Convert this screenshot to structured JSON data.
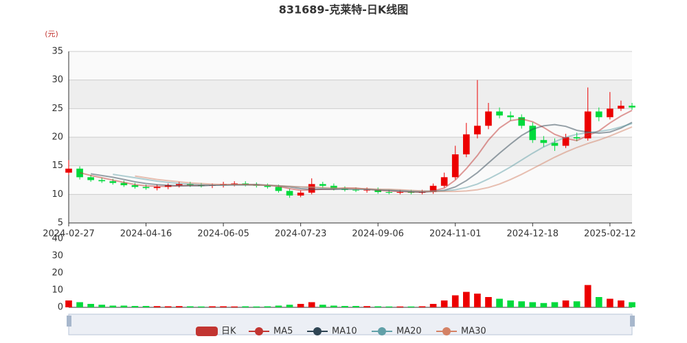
{
  "chart_data": [
    {
      "type": "candlestick",
      "title": "831689-克莱特-日K线图",
      "y_unit": "(元)",
      "name": "日K",
      "up_color": "#ec0000",
      "down_color": "#00da3c",
      "categories": [
        "2024-02-27",
        null,
        null,
        null,
        null,
        null,
        null,
        "2024-04-16",
        null,
        null,
        null,
        null,
        null,
        null,
        "2024-06-05",
        null,
        null,
        null,
        null,
        null,
        null,
        "2024-07-23",
        null,
        null,
        null,
        null,
        null,
        null,
        "2024-09-06",
        null,
        null,
        null,
        null,
        null,
        null,
        "2024-11-01",
        null,
        null,
        null,
        null,
        null,
        null,
        "2024-12-18",
        null,
        null,
        null,
        null,
        null,
        null,
        "2025-02-12",
        null,
        null
      ],
      "open": [
        13.8,
        14.5,
        13.0,
        12.5,
        12.3,
        12.0,
        11.6,
        11.3,
        11.1,
        11.3,
        11.6,
        11.8,
        11.6,
        11.5,
        11.6,
        11.8,
        11.9,
        11.7,
        11.5,
        11.3,
        10.6,
        9.8,
        10.3,
        11.8,
        11.5,
        11.0,
        10.8,
        10.7,
        10.8,
        10.4,
        10.3,
        10.4,
        10.3,
        10.4,
        11.5,
        13.0,
        17.0,
        20.5,
        22.0,
        24.5,
        23.8,
        23.5,
        22.0,
        19.5,
        19.0,
        18.5,
        20.0,
        19.8,
        24.5,
        23.5,
        25.0,
        25.5
      ],
      "close": [
        14.5,
        13.0,
        12.5,
        12.3,
        12.0,
        11.6,
        11.3,
        11.1,
        11.3,
        11.6,
        11.8,
        11.6,
        11.5,
        11.6,
        11.8,
        11.9,
        11.7,
        11.5,
        11.3,
        10.6,
        9.8,
        10.3,
        11.8,
        11.5,
        11.0,
        10.8,
        10.7,
        10.8,
        10.4,
        10.3,
        10.4,
        10.3,
        10.4,
        11.5,
        13.0,
        17.0,
        20.5,
        22.0,
        24.5,
        23.8,
        23.5,
        22.0,
        19.5,
        19.0,
        18.5,
        20.0,
        19.8,
        24.5,
        23.5,
        25.0,
        25.5,
        25.2
      ],
      "low": [
        13.4,
        12.6,
        12.2,
        12.0,
        11.7,
        11.3,
        11.0,
        10.8,
        10.7,
        10.9,
        11.2,
        11.3,
        11.2,
        11.1,
        11.2,
        11.4,
        11.4,
        11.2,
        11.0,
        10.3,
        9.4,
        9.5,
        10.0,
        11.1,
        10.7,
        10.5,
        10.4,
        10.3,
        10.1,
        10.0,
        10.0,
        10.0,
        10.0,
        10.1,
        11.2,
        12.6,
        16.5,
        19.8,
        21.4,
        23.3,
        22.9,
        21.5,
        19.0,
        18.3,
        17.6,
        18.1,
        19.3,
        19.4,
        22.8,
        23.1,
        24.6,
        24.8
      ],
      "high": [
        16.0,
        14.9,
        13.4,
        12.9,
        12.7,
        12.4,
        12.0,
        11.7,
        11.7,
        11.9,
        12.2,
        12.2,
        12.0,
        11.9,
        12.2,
        12.3,
        12.3,
        12.1,
        11.9,
        11.7,
        11.0,
        10.7,
        12.8,
        12.2,
        11.9,
        11.4,
        11.2,
        11.2,
        11.2,
        10.8,
        10.8,
        10.8,
        10.8,
        11.9,
        13.8,
        18.5,
        22.5,
        30.0,
        26.0,
        25.2,
        24.5,
        24.0,
        22.6,
        20.2,
        19.8,
        20.6,
        20.8,
        28.7,
        25.2,
        27.9,
        26.4,
        26.0
      ],
      "series": [
        {
          "name": "MA5",
          "color": "#c23531",
          "values": [
            null,
            13.8,
            13.3,
            12.9,
            12.5,
            12.1,
            11.7,
            11.5,
            11.4,
            11.4,
            11.5,
            11.6,
            11.6,
            11.6,
            11.7,
            11.7,
            11.7,
            11.7,
            11.6,
            11.4,
            11.0,
            10.7,
            10.8,
            10.9,
            10.9,
            11.1,
            11.1,
            10.9,
            10.7,
            10.6,
            10.5,
            10.4,
            10.4,
            10.6,
            11.1,
            12.5,
            14.5,
            16.8,
            19.5,
            21.6,
            22.9,
            23.2,
            22.7,
            21.7,
            20.5,
            19.8,
            19.4,
            20.3,
            21.1,
            22.5,
            23.7,
            24.7
          ]
        },
        {
          "name": "MA10",
          "color": "#2f4554",
          "values": [
            null,
            null,
            13.6,
            13.3,
            13.0,
            12.6,
            12.2,
            11.9,
            11.7,
            11.6,
            11.5,
            11.5,
            11.5,
            11.6,
            11.6,
            11.7,
            11.7,
            11.7,
            11.6,
            11.5,
            11.3,
            11.0,
            10.9,
            10.9,
            10.9,
            10.9,
            10.9,
            10.9,
            10.8,
            10.7,
            10.6,
            10.5,
            10.4,
            10.5,
            10.7,
            11.3,
            12.4,
            13.8,
            15.5,
            17.2,
            18.8,
            20.3,
            21.4,
            22.0,
            22.2,
            21.9,
            21.2,
            20.9,
            20.7,
            20.9,
            21.6,
            22.6
          ]
        },
        {
          "name": "MA20",
          "color": "#61a0a8",
          "values": [
            null,
            null,
            null,
            null,
            13.5,
            13.2,
            12.9,
            12.6,
            12.3,
            12.1,
            11.9,
            11.8,
            11.7,
            11.6,
            11.6,
            11.6,
            11.6,
            11.6,
            11.6,
            11.5,
            11.4,
            11.3,
            11.2,
            11.1,
            11.0,
            11.0,
            10.9,
            10.9,
            10.8,
            10.8,
            10.7,
            10.6,
            10.6,
            10.6,
            10.6,
            10.8,
            11.2,
            11.8,
            12.7,
            13.7,
            14.8,
            16.0,
            17.2,
            18.3,
            19.2,
            20.0,
            20.5,
            20.8,
            21.0,
            21.3,
            21.8,
            22.4
          ]
        },
        {
          "name": "MA30",
          "color": "#d48265",
          "values": [
            null,
            null,
            null,
            null,
            null,
            null,
            13.2,
            12.9,
            12.6,
            12.4,
            12.2,
            12.0,
            11.9,
            11.8,
            11.7,
            11.7,
            11.7,
            11.6,
            11.6,
            11.5,
            11.4,
            11.3,
            11.3,
            11.2,
            11.1,
            11.1,
            11.0,
            11.0,
            10.9,
            10.9,
            10.8,
            10.7,
            10.6,
            10.5,
            10.5,
            10.5,
            10.6,
            10.8,
            11.2,
            11.8,
            12.6,
            13.5,
            14.5,
            15.5,
            16.5,
            17.4,
            18.2,
            18.9,
            19.5,
            20.2,
            21.0,
            21.8
          ]
        }
      ],
      "ylim": [
        5,
        35
      ],
      "yticks": [
        5,
        10,
        15,
        20,
        25,
        30,
        35
      ],
      "grid": true
    },
    {
      "type": "bar",
      "values": [
        4,
        3,
        2,
        1.5,
        1,
        1,
        0.8,
        0.8,
        0.7,
        0.6,
        0.7,
        0.6,
        0.5,
        0.6,
        0.6,
        0.5,
        0.6,
        0.5,
        0.6,
        1,
        1.5,
        2,
        3,
        1.5,
        1,
        0.8,
        0.8,
        0.7,
        0.6,
        0.5,
        0.5,
        0.5,
        0.6,
        2,
        4,
        7,
        9,
        8,
        6,
        5,
        4,
        3.5,
        3,
        2.5,
        3,
        4,
        3.5,
        13,
        6,
        5,
        4,
        3
      ],
      "ylim": [
        0,
        40
      ],
      "yticks": [
        0,
        10,
        20,
        30,
        40
      ]
    }
  ]
}
